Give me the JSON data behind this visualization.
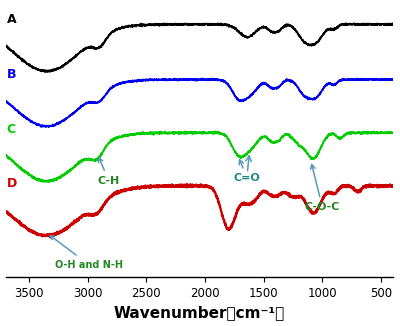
{
  "xlabel": "Wavenumber（cm⁻¹）",
  "xlim": [
    3700,
    400
  ],
  "background_color": "#ffffff",
  "labels": [
    "A",
    "B",
    "C",
    "D"
  ],
  "colors": [
    "black",
    "#0000ee",
    "#00cc00",
    "#cc0000"
  ],
  "label_colors": [
    "black",
    "#0000ee",
    "#00cc00",
    "#cc0000"
  ],
  "offsets": [
    0.75,
    0.5,
    0.25,
    0.0
  ],
  "scale": 0.22,
  "noise_A": 0.005,
  "noise_B": 0.005,
  "noise_C": 0.006,
  "noise_D": 0.008,
  "seed": 17
}
